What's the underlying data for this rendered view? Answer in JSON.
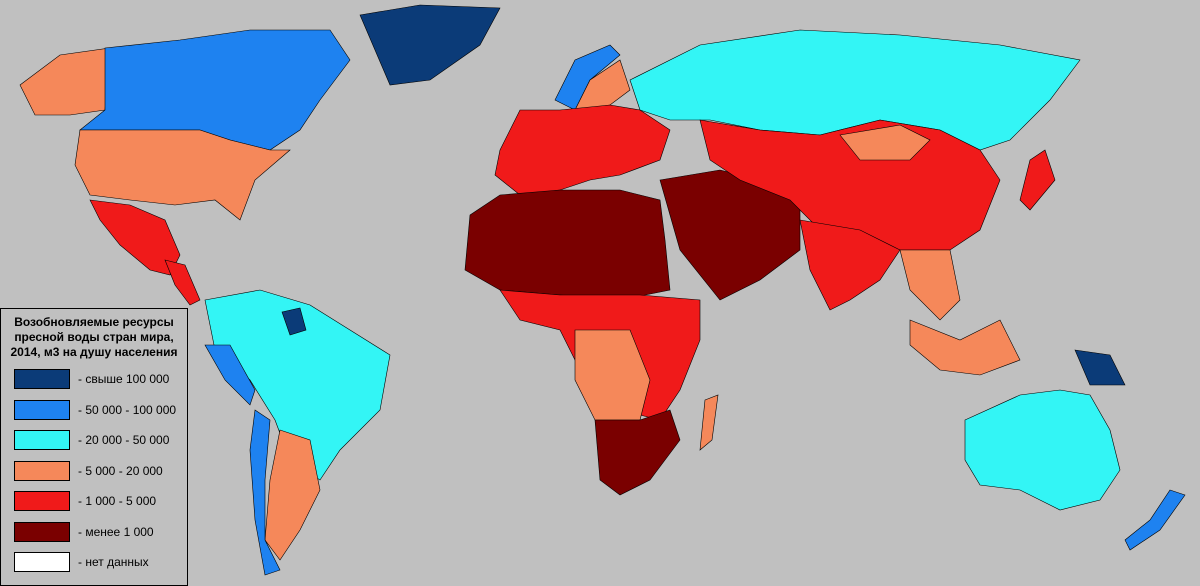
{
  "legend": {
    "title_lines": [
      "Возобновляемые ресурсы",
      "пресной воды стран мира,",
      "2014, м3 на душу населения"
    ],
    "items": [
      {
        "label": "- свыше 100 000",
        "color": "#0b3b78"
      },
      {
        "label": "- 50 000 - 100 000",
        "color": "#1e82f0"
      },
      {
        "label": "- 20 000 - 50 000",
        "color": "#33f5f5"
      },
      {
        "label": "- 5 000 - 20 000",
        "color": "#f5885a"
      },
      {
        "label": "- 1 000 - 5 000",
        "color": "#f01a1a"
      },
      {
        "label": "- менее 1 000",
        "color": "#7a0000"
      },
      {
        "label": "- нет данных",
        "color": "#ffffff"
      }
    ]
  }
}
